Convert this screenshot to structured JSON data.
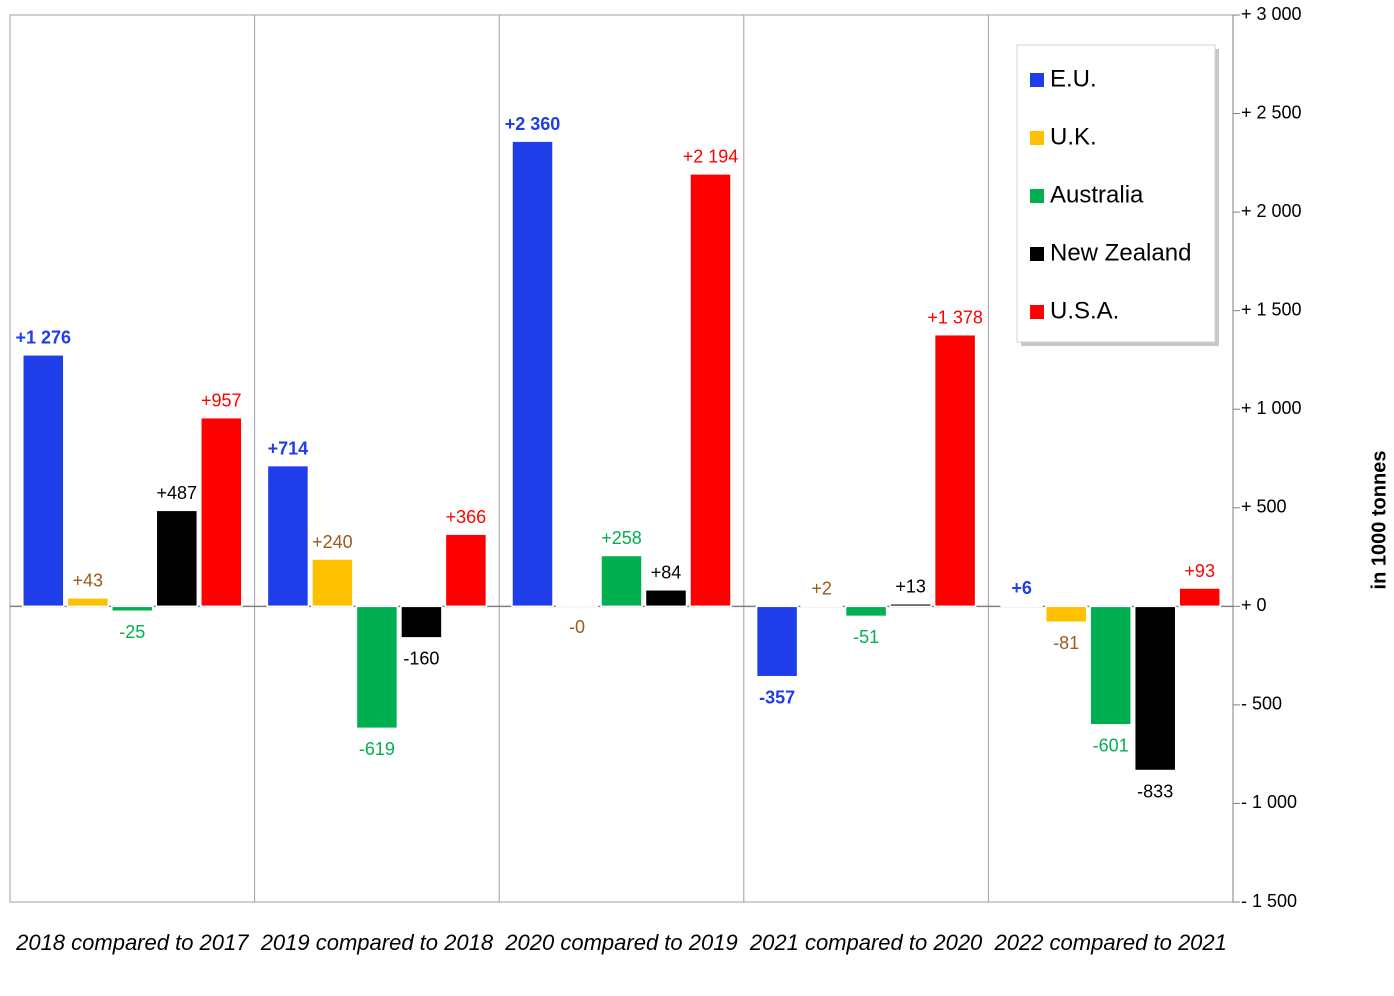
{
  "chart_data": {
    "type": "bar",
    "categories": [
      "2018 compared to 2017",
      "2019 compared to 2018",
      "2020 compared to 2019",
      "2021 compared to 2020",
      "2022 compared to 2021"
    ],
    "series": [
      {
        "name": "E.U.",
        "color": "#1f3de8",
        "label_color": "#1f3de8",
        "values": [
          1276,
          714,
          2360,
          -357,
          6
        ],
        "value_labels": [
          "+1 276",
          "+714",
          "+2 360",
          "-357",
          "+6"
        ]
      },
      {
        "name": "U.K.",
        "color": "#ffc000",
        "label_color": "#9c5a1c",
        "values": [
          43,
          240,
          -0.3,
          2,
          -81
        ],
        "value_labels": [
          "+43",
          "+240",
          "-0",
          "+2",
          "-81"
        ]
      },
      {
        "name": "Australia",
        "color": "#00b050",
        "label_color": "#00b050",
        "values": [
          -25,
          -619,
          258,
          -51,
          -601
        ],
        "value_labels": [
          "-25",
          "-619",
          "+258",
          "-51",
          "-601"
        ]
      },
      {
        "name": "New Zealand",
        "color": "#000000",
        "label_color": "#000000",
        "values": [
          487,
          -160,
          84,
          13,
          -833
        ],
        "value_labels": [
          "+487",
          "-160",
          "+84",
          "+13",
          "-833"
        ]
      },
      {
        "name": "U.S.A.",
        "color": "#ff0000",
        "label_color": "#ff0000",
        "values": [
          957,
          366,
          2194,
          1378,
          93
        ],
        "value_labels": [
          "+957",
          "+366",
          "+2 194",
          "+1 378",
          "+93"
        ]
      }
    ],
    "y_label": "in 1000 tonnes",
    "ylim": [
      -1500,
      3000
    ],
    "yticks": [
      {
        "value": -1500,
        "label": "- 1 500"
      },
      {
        "value": -1000,
        "label": "- 1 000"
      },
      {
        "value": -500,
        "label": "- 500"
      },
      {
        "value": 0,
        "label": "+ 0"
      },
      {
        "value": 500,
        "label": "+ 500"
      },
      {
        "value": 1000,
        "label": "+ 1 000"
      },
      {
        "value": 1500,
        "label": "+ 1 500"
      },
      {
        "value": 2000,
        "label": "+ 2 000"
      },
      {
        "value": 2500,
        "label": "+ 2 500"
      },
      {
        "value": 3000,
        "label": "+ 3 000"
      }
    ],
    "y_axis_side": "right",
    "legend": "top-right"
  }
}
